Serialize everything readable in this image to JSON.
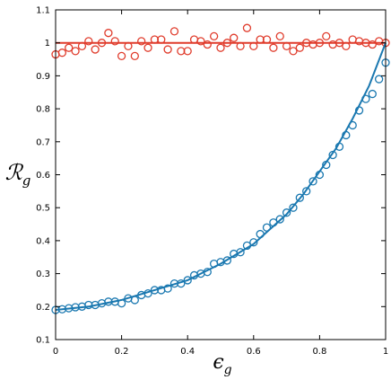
{
  "chart_data": {
    "type": "scatter",
    "title": "",
    "xlabel": "ϵ",
    "xlabel_sub": "g",
    "ylabel": "ℛ",
    "ylabel_sub": "g",
    "xlim": [
      0,
      1
    ],
    "ylim": [
      0.1,
      1.1
    ],
    "xticks": [
      0,
      0.2,
      0.4,
      0.6,
      0.8,
      1
    ],
    "xtick_labels": [
      "0",
      "0.2",
      "0.4",
      "0.6",
      "0.8",
      "1"
    ],
    "yticks": [
      0.1,
      0.2,
      0.3,
      0.4,
      0.5,
      0.6,
      0.7,
      0.8,
      0.9,
      1,
      1.1
    ],
    "ytick_labels": [
      "0.1",
      "0.2",
      "0.3",
      "0.4",
      "0.5",
      "0.6",
      "0.7",
      "0.8",
      "0.9",
      "1",
      "1.1"
    ],
    "grid": false,
    "legend": "none",
    "series": [
      {
        "color": "#e03c2c",
        "marker": "open-circle",
        "line": {
          "x": [
            0,
            1
          ],
          "y": [
            1.0,
            1.0
          ]
        },
        "x": [
          0,
          0.02,
          0.04,
          0.06,
          0.08,
          0.1,
          0.12,
          0.14,
          0.16,
          0.18,
          0.2,
          0.22,
          0.24,
          0.26,
          0.28,
          0.3,
          0.32,
          0.34,
          0.36,
          0.38,
          0.4,
          0.42,
          0.44,
          0.46,
          0.48,
          0.5,
          0.52,
          0.54,
          0.56,
          0.58,
          0.6,
          0.62,
          0.64,
          0.66,
          0.68,
          0.7,
          0.72,
          0.74,
          0.76,
          0.78,
          0.8,
          0.82,
          0.84,
          0.86,
          0.88,
          0.9,
          0.92,
          0.94,
          0.96,
          0.98,
          1.0
        ],
        "y": [
          0.965,
          0.97,
          0.985,
          0.975,
          0.99,
          1.005,
          0.98,
          1.0,
          1.03,
          1.005,
          0.96,
          0.99,
          0.96,
          1.005,
          0.985,
          1.01,
          1.01,
          0.98,
          1.035,
          0.975,
          0.975,
          1.01,
          1.005,
          0.995,
          1.02,
          0.985,
          1.0,
          1.015,
          0.99,
          1.045,
          0.99,
          1.01,
          1.01,
          0.985,
          1.02,
          0.99,
          0.975,
          0.985,
          1.0,
          0.995,
          1.0,
          1.02,
          0.995,
          1.0,
          0.99,
          1.01,
          1.005,
          1.0,
          0.995,
          1.005,
          1.0
        ]
      },
      {
        "color": "#1a78b0",
        "marker": "open-circle",
        "line": {
          "x": [
            0,
            0.05,
            0.1,
            0.15,
            0.2,
            0.25,
            0.3,
            0.35,
            0.4,
            0.45,
            0.5,
            0.55,
            0.6,
            0.65,
            0.7,
            0.75,
            0.8,
            0.85,
            0.9,
            0.95,
            1.0
          ],
          "y": [
            0.19,
            0.195,
            0.2,
            0.21,
            0.22,
            0.235,
            0.25,
            0.265,
            0.28,
            0.305,
            0.33,
            0.36,
            0.39,
            0.435,
            0.48,
            0.54,
            0.61,
            0.68,
            0.77,
            0.87,
            1.0
          ]
        },
        "x": [
          0,
          0.02,
          0.04,
          0.06,
          0.08,
          0.1,
          0.12,
          0.14,
          0.16,
          0.18,
          0.2,
          0.22,
          0.24,
          0.26,
          0.28,
          0.3,
          0.32,
          0.34,
          0.36,
          0.38,
          0.4,
          0.42,
          0.44,
          0.46,
          0.48,
          0.5,
          0.52,
          0.54,
          0.56,
          0.58,
          0.6,
          0.62,
          0.64,
          0.66,
          0.68,
          0.7,
          0.72,
          0.74,
          0.76,
          0.78,
          0.8,
          0.82,
          0.84,
          0.86,
          0.88,
          0.9,
          0.92,
          0.94,
          0.96,
          0.98,
          1.0
        ],
        "y": [
          0.19,
          0.192,
          0.195,
          0.198,
          0.2,
          0.205,
          0.205,
          0.21,
          0.215,
          0.215,
          0.21,
          0.225,
          0.22,
          0.235,
          0.24,
          0.25,
          0.25,
          0.255,
          0.27,
          0.27,
          0.28,
          0.295,
          0.3,
          0.305,
          0.33,
          0.335,
          0.34,
          0.36,
          0.365,
          0.385,
          0.395,
          0.42,
          0.44,
          0.455,
          0.465,
          0.485,
          0.5,
          0.53,
          0.55,
          0.58,
          0.6,
          0.63,
          0.66,
          0.685,
          0.72,
          0.75,
          0.795,
          0.83,
          0.845,
          0.89,
          0.94
        ]
      }
    ]
  }
}
